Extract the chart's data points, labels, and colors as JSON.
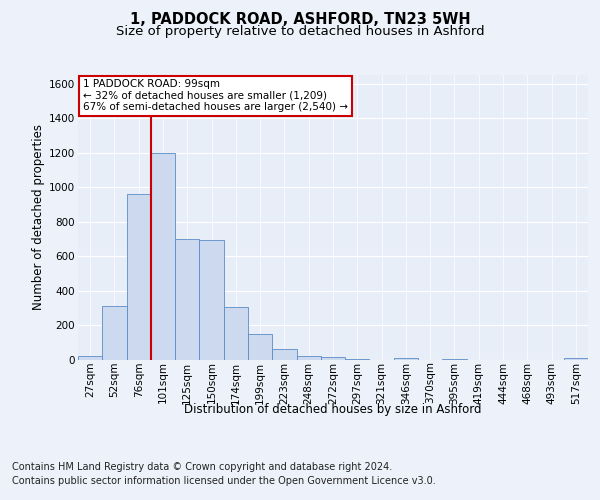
{
  "title": "1, PADDOCK ROAD, ASHFORD, TN23 5WH",
  "subtitle": "Size of property relative to detached houses in Ashford",
  "xlabel": "Distribution of detached houses by size in Ashford",
  "ylabel": "Number of detached properties",
  "bar_labels": [
    "27sqm",
    "52sqm",
    "76sqm",
    "101sqm",
    "125sqm",
    "150sqm",
    "174sqm",
    "199sqm",
    "223sqm",
    "248sqm",
    "272sqm",
    "297sqm",
    "321sqm",
    "346sqm",
    "370sqm",
    "395sqm",
    "419sqm",
    "444sqm",
    "468sqm",
    "493sqm",
    "517sqm"
  ],
  "bar_values": [
    25,
    310,
    960,
    1200,
    700,
    695,
    305,
    150,
    65,
    25,
    15,
    5,
    0,
    10,
    0,
    8,
    0,
    0,
    0,
    0,
    12
  ],
  "bar_color": "#cdd9ee",
  "bar_edge_color": "#5a8cc8",
  "ylim": [
    0,
    1650
  ],
  "yticks": [
    0,
    200,
    400,
    600,
    800,
    1000,
    1200,
    1400,
    1600
  ],
  "property_bin_index": 3,
  "red_line_color": "#cc0000",
  "annotation_text_line1": "1 PADDOCK ROAD: 99sqm",
  "annotation_text_line2": "← 32% of detached houses are smaller (1,209)",
  "annotation_text_line3": "67% of semi-detached houses are larger (2,540) →",
  "annotation_box_color": "#cc0000",
  "footer_line1": "Contains HM Land Registry data © Crown copyright and database right 2024.",
  "footer_line2": "Contains public sector information licensed under the Open Government Licence v3.0.",
  "background_color": "#edf2fa",
  "plot_bg_color": "#e8eef8",
  "grid_color": "#ffffff",
  "title_fontsize": 10.5,
  "subtitle_fontsize": 9.5,
  "axis_label_fontsize": 8.5,
  "tick_fontsize": 7.5,
  "annotation_fontsize": 7.5,
  "footer_fontsize": 7.0
}
